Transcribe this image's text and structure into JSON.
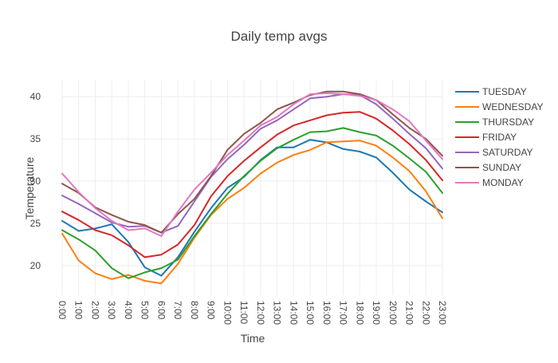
{
  "chart_data": {
    "type": "line",
    "title": "Daily temp avgs",
    "xlabel": "Time",
    "ylabel": "Temperature",
    "x": [
      "0:00",
      "1:00",
      "2:00",
      "3:00",
      "4:00",
      "5:00",
      "6:00",
      "7:00",
      "8:00",
      "9:00",
      "10:00",
      "11:00",
      "12:00",
      "13:00",
      "14:00",
      "15:00",
      "16:00",
      "17:00",
      "18:00",
      "19:00",
      "20:00",
      "21:00",
      "22:00",
      "23:00"
    ],
    "ylim": [
      16.5,
      42
    ],
    "yticks": [
      20,
      25,
      30,
      35,
      40
    ],
    "grid": true,
    "legend_position": "right",
    "series": [
      {
        "name": "TUESDAY",
        "color": "#1f77b4",
        "values": [
          25.3,
          24.1,
          24.4,
          24.9,
          22.8,
          19.8,
          18.8,
          21.0,
          24.0,
          26.8,
          29.2,
          30.5,
          32.5,
          34.0,
          34.0,
          34.9,
          34.6,
          33.8,
          33.5,
          32.8,
          31.0,
          29.0,
          27.6,
          26.3
        ]
      },
      {
        "name": "WEDNESDAY",
        "color": "#ff7f0e",
        "values": [
          23.8,
          20.6,
          19.1,
          18.4,
          18.9,
          18.2,
          17.9,
          20.2,
          23.3,
          26.0,
          27.9,
          29.2,
          30.9,
          32.2,
          33.1,
          33.7,
          34.6,
          34.7,
          34.8,
          34.2,
          32.8,
          31.2,
          28.8,
          25.6
        ]
      },
      {
        "name": "THURSDAY",
        "color": "#2ca02c",
        "values": [
          24.2,
          23.1,
          21.8,
          19.7,
          18.5,
          19.2,
          19.7,
          20.7,
          23.5,
          26.1,
          28.5,
          30.6,
          32.4,
          33.9,
          34.9,
          35.8,
          35.9,
          36.3,
          35.8,
          35.4,
          34.2,
          32.7,
          31.1,
          28.6
        ]
      },
      {
        "name": "FRIDAY",
        "color": "#d62728",
        "values": [
          26.4,
          25.4,
          24.2,
          23.6,
          22.4,
          21.0,
          21.3,
          22.5,
          24.8,
          28.2,
          30.6,
          32.4,
          34.0,
          35.5,
          36.6,
          37.2,
          37.8,
          38.1,
          38.2,
          37.4,
          36.0,
          34.4,
          32.5,
          30.1
        ]
      },
      {
        "name": "SATURDAY",
        "color": "#9467bd",
        "values": [
          28.3,
          27.3,
          26.2,
          25.1,
          24.6,
          24.7,
          23.9,
          24.7,
          27.6,
          30.5,
          32.6,
          34.3,
          36.2,
          37.2,
          38.5,
          39.8,
          40.0,
          40.3,
          40.2,
          39.1,
          37.4,
          35.6,
          33.9,
          31.5
        ]
      },
      {
        "name": "SUNDAY",
        "color": "#8c564b",
        "values": [
          29.7,
          28.6,
          26.9,
          26.0,
          25.2,
          24.8,
          23.9,
          26.1,
          27.9,
          30.6,
          33.7,
          35.6,
          36.9,
          38.5,
          39.3,
          40.2,
          40.6,
          40.6,
          40.3,
          39.6,
          37.9,
          36.3,
          35.0,
          33.0
        ]
      },
      {
        "name": "MONDAY",
        "color": "#e377c2",
        "values": [
          30.9,
          28.7,
          26.8,
          25.3,
          24.2,
          24.4,
          23.5,
          26.4,
          29.0,
          31.0,
          33.1,
          34.8,
          36.6,
          37.6,
          39.1,
          40.3,
          40.4,
          40.3,
          40.1,
          39.6,
          38.5,
          37.1,
          34.8,
          32.6
        ]
      }
    ]
  }
}
